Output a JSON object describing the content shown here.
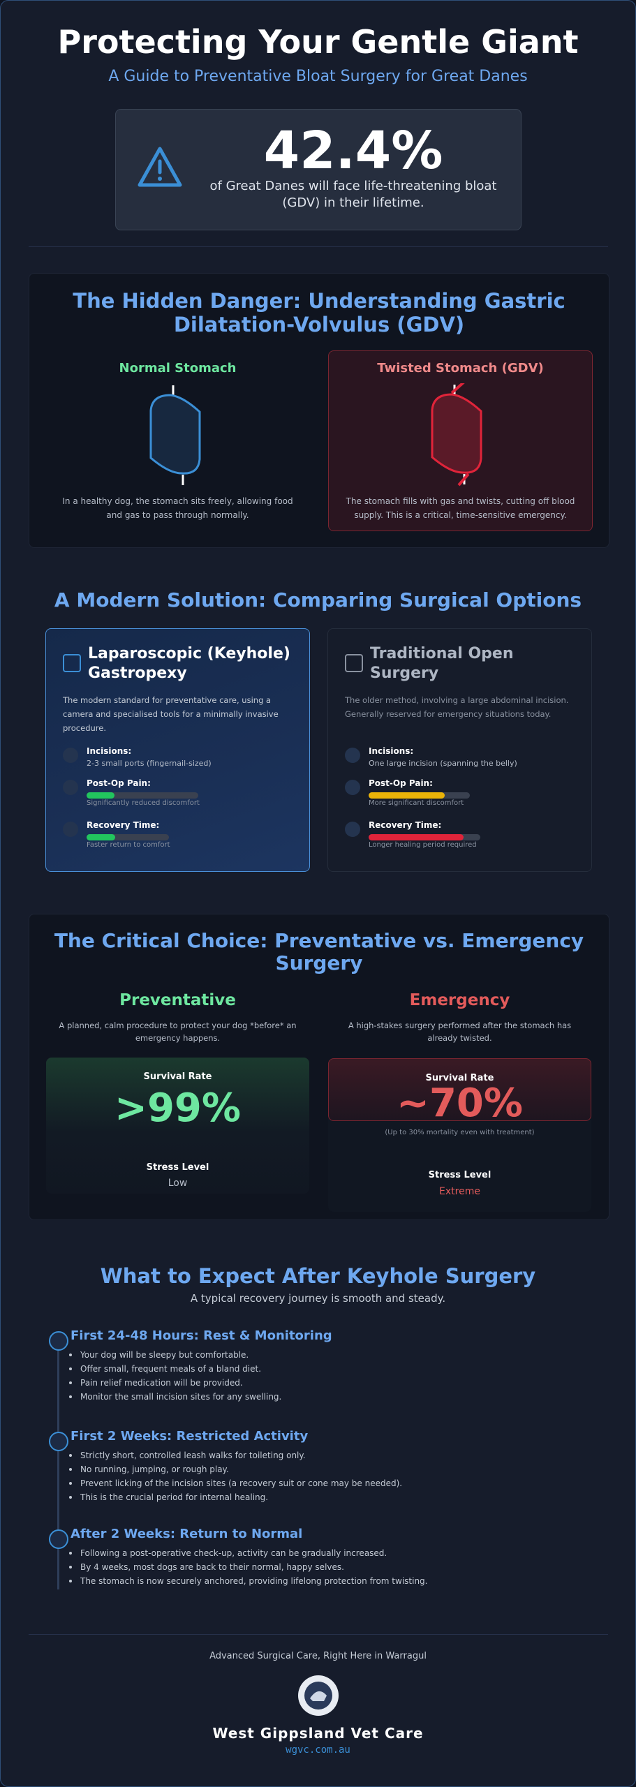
{
  "header": {
    "title": "Protecting Your Gentle Giant",
    "subtitle": "A Guide to Preventative Bloat Surgery for Great Danes"
  },
  "stat": {
    "value": "42.4%",
    "text": "of Great Danes will face life-threatening bloat (GDV) in their lifetime."
  },
  "gdv": {
    "title": "The Hidden Danger: Understanding Gastric Dilatation-Volvulus (GDV)",
    "normal": {
      "title": "Normal Stomach",
      "text": "In a healthy dog, the stomach sits freely, allowing food and gas to pass through normally."
    },
    "twisted": {
      "title": "Twisted Stomach (GDV)",
      "text": "The stomach fills with gas and twists, cutting off blood supply. This is a critical, time-sensitive emergency."
    }
  },
  "solution": {
    "title": "A Modern Solution: Comparing Surgical Options",
    "cards": [
      {
        "title": "Laparoscopic (Keyhole) Gastropexy",
        "desc": "The modern standard for preventative care, using a camera and specialised tools for a minimally invasive procedure.",
        "items": [
          {
            "label": "Incisions:",
            "text": "2-3 small ports (fingernail-sized)"
          },
          {
            "label": "Post-Op Pain:",
            "text": "Significantly reduced discomfort"
          },
          {
            "label": "Recovery Time:",
            "text": "Faster return to comfort"
          }
        ]
      },
      {
        "title": "Traditional Open Surgery",
        "desc": "The older method, involving a large abdominal incision. Generally reserved for emergency situations today.",
        "items": [
          {
            "label": "Incisions:",
            "text": "One large incision (spanning the belly)"
          },
          {
            "label": "Post-Op Pain:",
            "text": "More significant discomfort"
          },
          {
            "label": "Recovery Time:",
            "text": "Longer healing period required"
          }
        ]
      }
    ]
  },
  "choice": {
    "title": "The Critical Choice: Preventative vs. Emergency Surgery",
    "columns": [
      {
        "title": "Preventative",
        "desc": "A planned, calm procedure to protect your dog *before* an emergency happens.",
        "survival_label": "Survival Rate",
        "survival_value": ">99%",
        "stress_label": "Stress Level",
        "stress_value": "Low"
      },
      {
        "title": "Emergency",
        "desc": "A high-stakes surgery performed after the stomach has already twisted.",
        "survival_label": "Survival Rate",
        "survival_value": "~70%",
        "note": "(Up to 30% mortality even with treatment)",
        "stress_label": "Stress Level",
        "stress_value": "Extreme"
      }
    ]
  },
  "recovery": {
    "title": "What to Expect After Keyhole Surgery",
    "subtitle": "A typical recovery journey is smooth and steady.",
    "steps": [
      {
        "title": "First 24-48 Hours: Rest & Monitoring",
        "items": [
          "Your dog will be sleepy but comfortable.",
          "Offer small, frequent meals of a bland diet.",
          "Pain relief medication will be provided.",
          "Monitor the small incision sites for any swelling."
        ]
      },
      {
        "title": "First 2 Weeks: Restricted Activity",
        "items": [
          "Strictly short, controlled leash walks for toileting only.",
          "No running, jumping, or rough play.",
          "Prevent licking of the incision sites (a recovery suit or cone may be needed).",
          "This is the crucial period for internal healing."
        ]
      },
      {
        "title": "After 2 Weeks: Return to Normal",
        "items": [
          "Following a post-operative check-up, activity can be gradually increased.",
          "By 4 weeks, most dogs are back to their normal, happy selves.",
          "The stomach is now securely anchored, providing lifelong protection from twisting."
        ]
      }
    ]
  },
  "footer": {
    "tagline": "Advanced Surgical Care, Right Here in Warragul",
    "name": "West Gippsland Vet Care",
    "url": "wgvc.com.au"
  }
}
